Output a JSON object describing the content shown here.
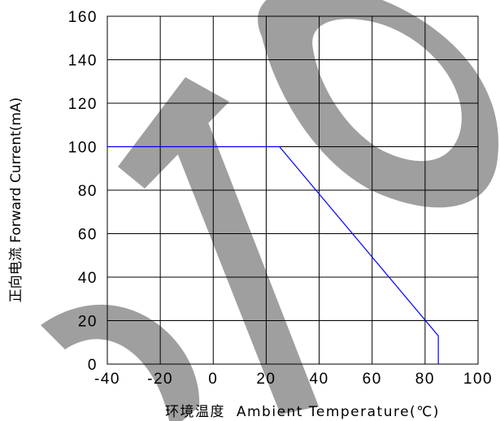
{
  "chart_data": {
    "type": "line",
    "title": "",
    "xlabel": "环境温度  Ambient Temperature(℃)",
    "ylabel": "正向电流 Forward Current(mA)",
    "xlim": [
      -40,
      100
    ],
    "ylim": [
      0,
      160
    ],
    "x_ticks": [
      -40,
      -20,
      0,
      20,
      40,
      60,
      80,
      100
    ],
    "y_ticks": [
      0,
      20,
      40,
      60,
      80,
      100,
      120,
      140,
      160
    ],
    "grid": true,
    "legend": "none",
    "series": [
      {
        "color": "#0000ff",
        "x": [
          -40,
          25,
          85,
          85
        ],
        "y": [
          100,
          100,
          13,
          0
        ]
      }
    ],
    "watermark": "DTO",
    "colors": {
      "grid": "#000000",
      "series": "#0000ff",
      "watermark": "#9a9a9a"
    }
  }
}
